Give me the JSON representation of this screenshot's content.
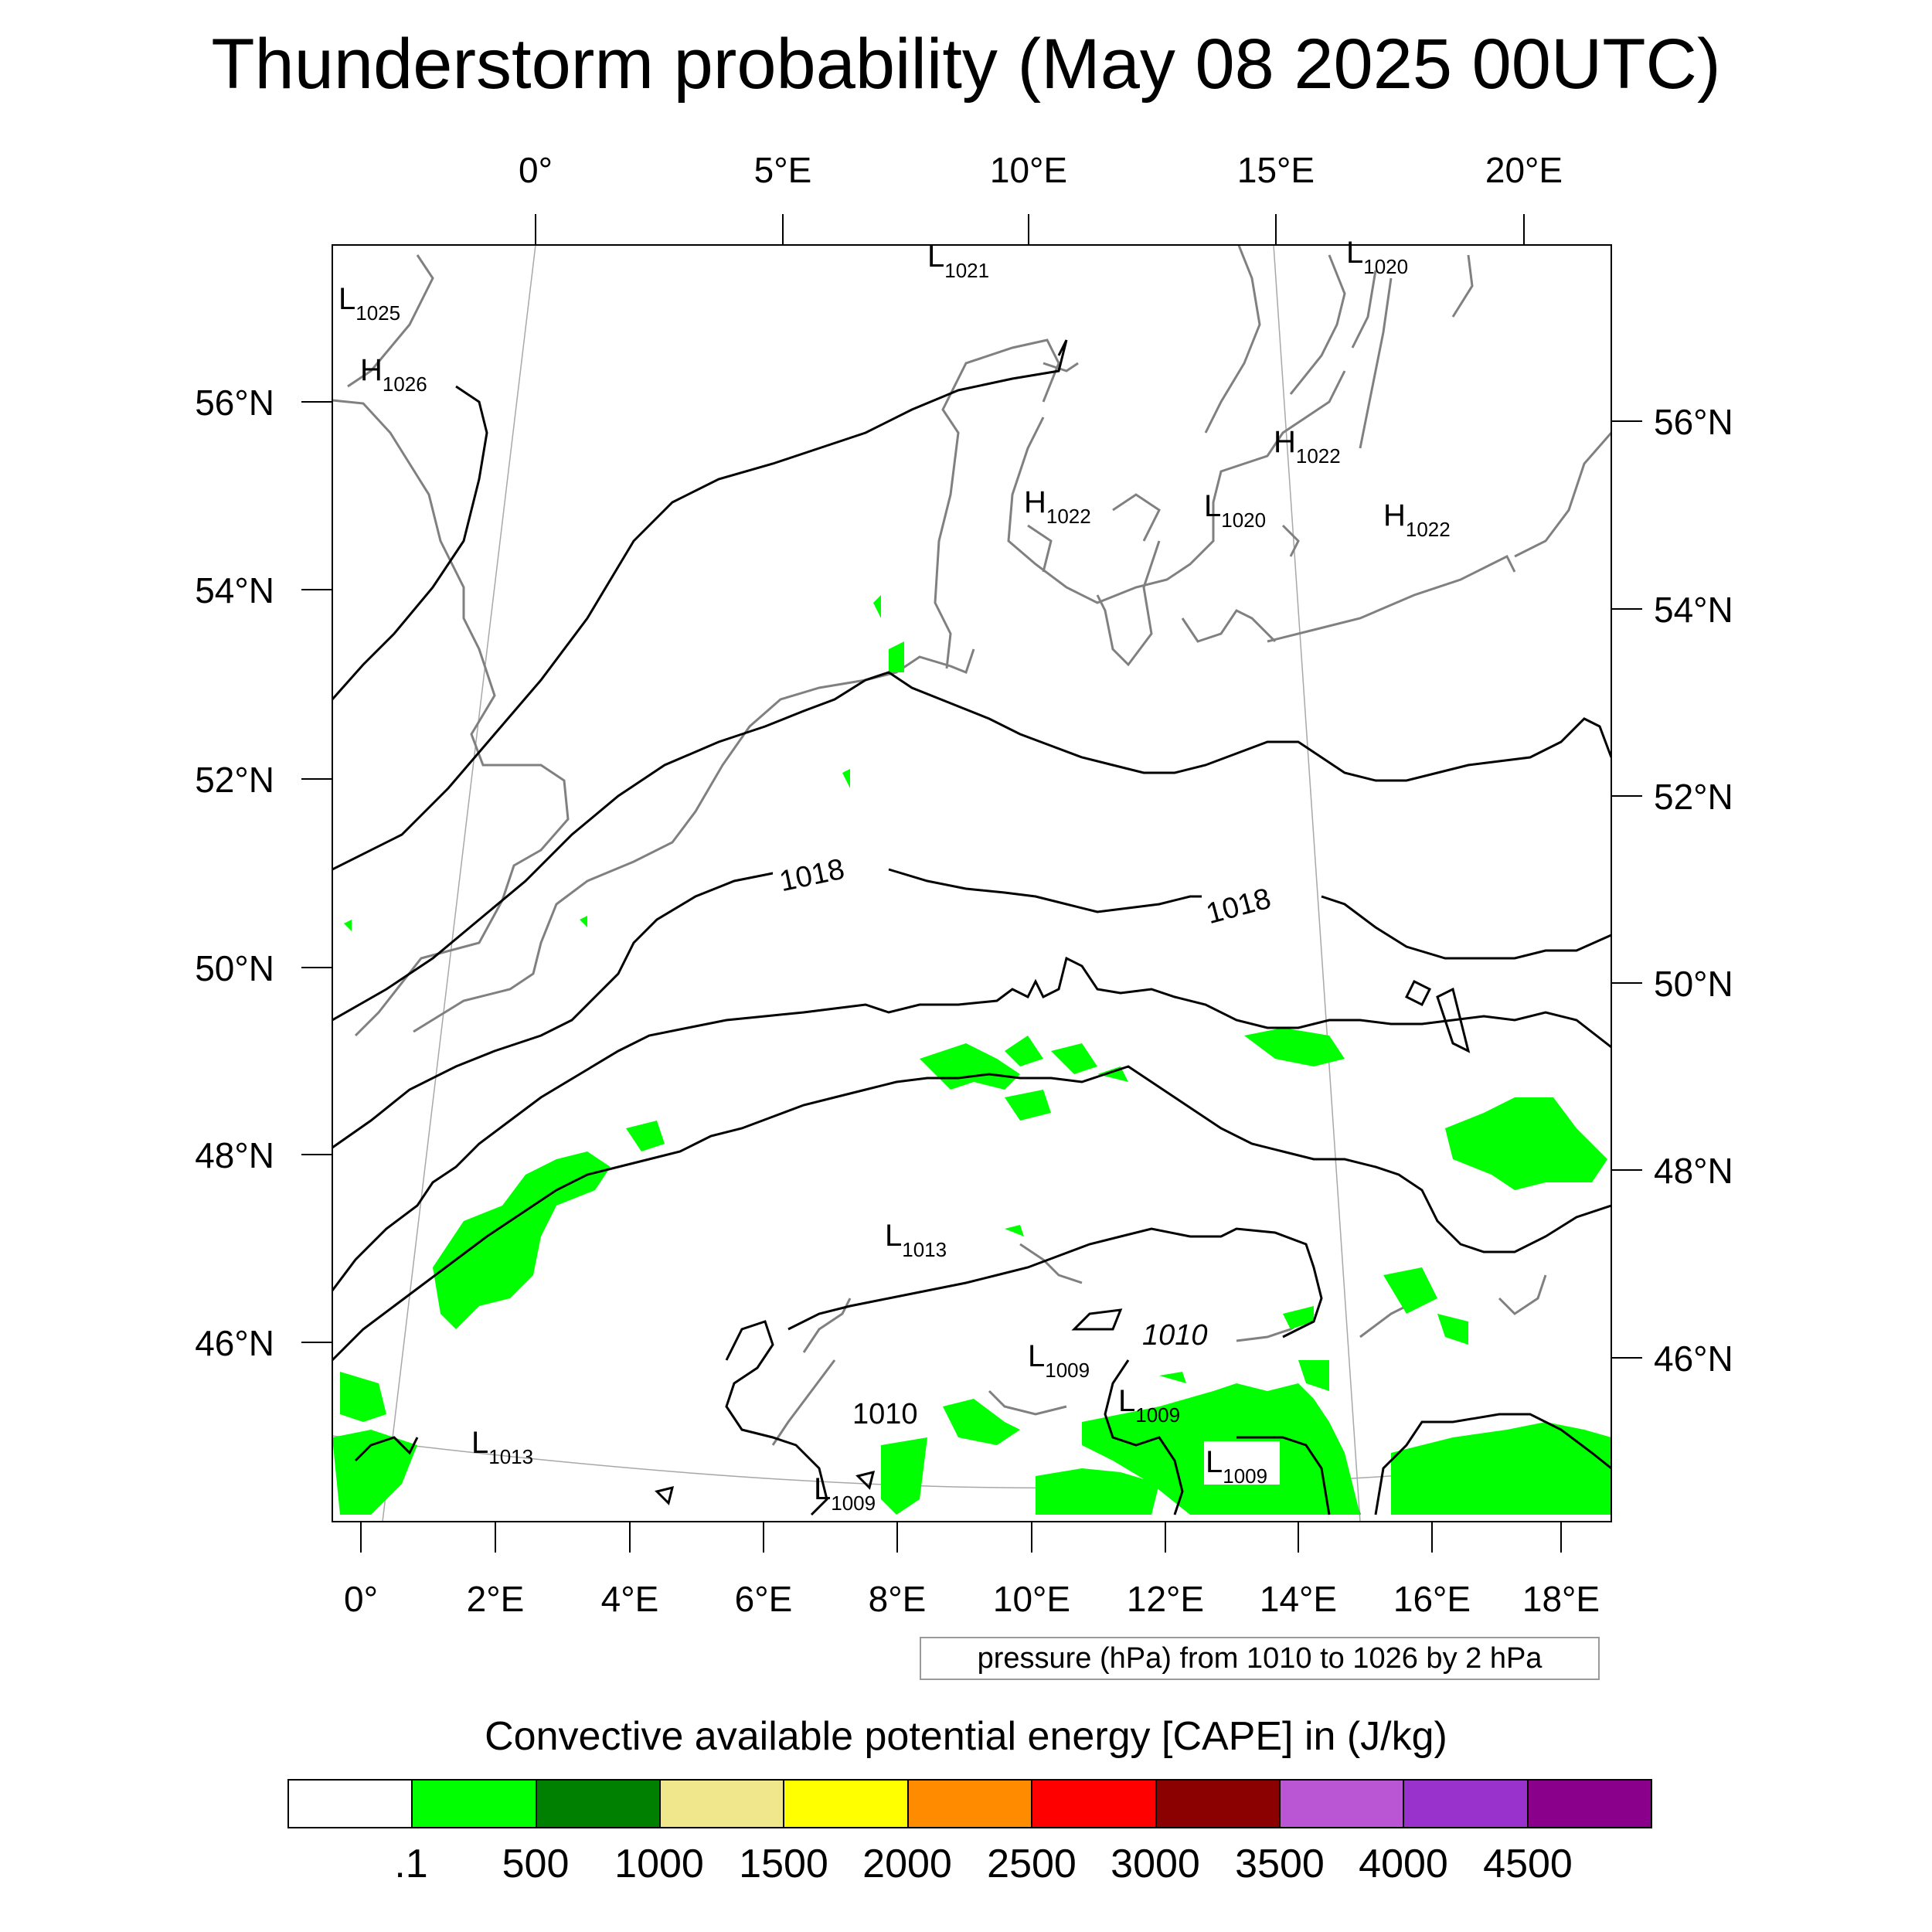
{
  "title": "Thunderstorm probability (May 08 2025 00UTC)",
  "map": {
    "top_lon_labels": [
      "0°",
      "5°E",
      "10°E",
      "15°E",
      "20°E"
    ],
    "bottom_lon_labels": [
      "0°",
      "2°E",
      "4°E",
      "6°E",
      "8°E",
      "10°E",
      "12°E",
      "14°E",
      "16°E",
      "18°E"
    ],
    "left_lat_labels": [
      "56°N",
      "54°N",
      "52°N",
      "50°N",
      "48°N",
      "46°N"
    ],
    "right_lat_labels": [
      "56°N",
      "54°N",
      "52°N",
      "50°N",
      "48°N",
      "46°N"
    ],
    "pressure_systems": [
      {
        "type": "L",
        "value": "1021"
      },
      {
        "type": "L",
        "value": "1020"
      },
      {
        "type": "L",
        "value": "1025"
      },
      {
        "type": "H",
        "value": "1026"
      },
      {
        "type": "H",
        "value": "1022"
      },
      {
        "type": "H",
        "value": "1022"
      },
      {
        "type": "L",
        "value": "1020"
      },
      {
        "type": "H",
        "value": "1022"
      },
      {
        "type": "L",
        "value": "1013"
      },
      {
        "type": "L",
        "value": "1009"
      },
      {
        "type": "L",
        "value": "1009"
      },
      {
        "type": "L",
        "value": "1009"
      },
      {
        "type": "L",
        "value": "1009"
      },
      {
        "type": "L",
        "value": "1013"
      }
    ],
    "contour_labels": [
      "1018",
      "1018",
      "1010",
      "1010"
    ],
    "contour_info": "pressure (hPa) from 1010 to 1026 by 2 hPa",
    "cape_fill_color": "#00ff00",
    "isobar_color": "#000000",
    "coastline_color": "#808080"
  },
  "colorbar": {
    "title": "Convective available potential energy [CAPE] in (J/kg)",
    "colors": [
      "#ffffff",
      "#00ff00",
      "#008000",
      "#f0e68c",
      "#ffff00",
      "#ff8c00",
      "#ff0000",
      "#8b0000",
      "#ba55d3",
      "#9932cc",
      "#8b008b"
    ],
    "labels": [
      ".1",
      "500",
      "1000",
      "1500",
      "2000",
      "2500",
      "3000",
      "3500",
      "4000",
      "4500"
    ]
  }
}
